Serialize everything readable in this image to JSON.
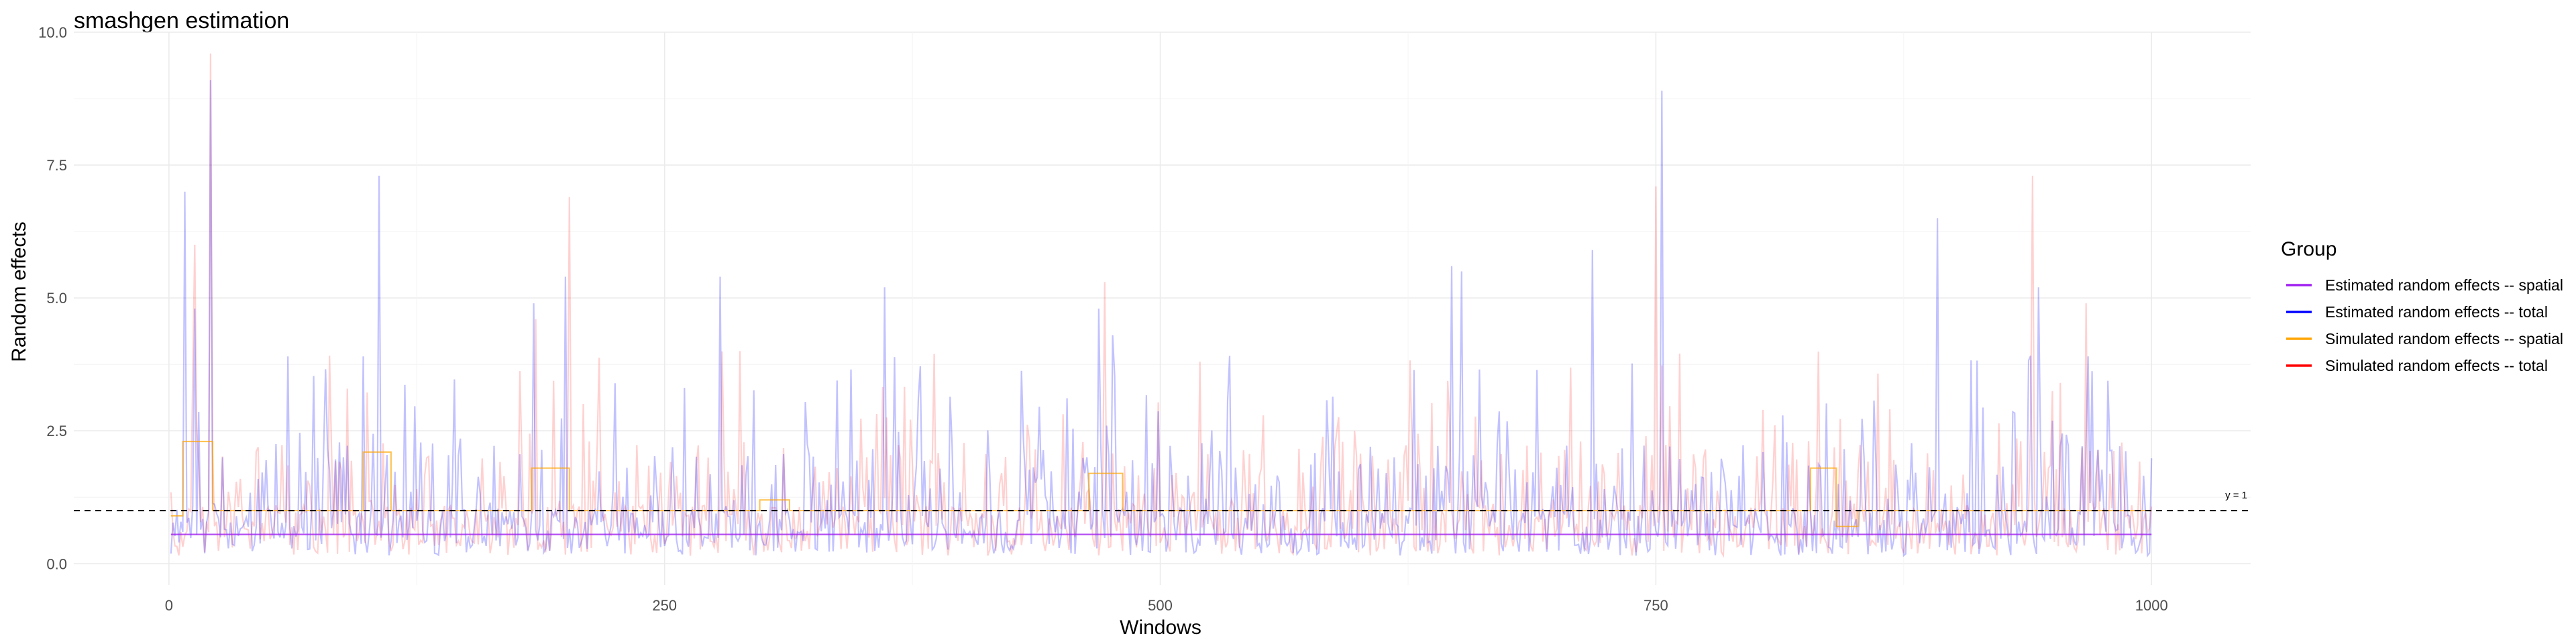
{
  "chart_data": {
    "type": "line",
    "title": "smashgen estimation",
    "xlabel": "Windows",
    "ylabel": "Random effects",
    "xlim": [
      -48,
      1050
    ],
    "ylim": [
      -0.4,
      10.0
    ],
    "x_ticks": [
      0,
      250,
      500,
      750,
      1000
    ],
    "x_tick_labels": [
      "0",
      "250",
      "500",
      "750",
      "1000"
    ],
    "y_ticks": [
      0,
      2.5,
      5,
      7.5,
      10
    ],
    "y_tick_labels": [
      "0.0",
      "2.5",
      "5.0",
      "7.5",
      "10.0"
    ],
    "grid": true,
    "legend_position": "right",
    "legend_title": "Group",
    "reference_line": {
      "y": 1,
      "label": "y = 1",
      "style": "dashed"
    },
    "series": [
      {
        "name": "Estimated random effects -- spatial",
        "color": "#a020f0",
        "kind": "flat-line",
        "x": [
          1,
          1000
        ],
        "values": [
          0.55,
          0.55
        ]
      },
      {
        "name": "Estimated random effects -- total",
        "color": "#0000ff",
        "kind": "noisy-spikes",
        "x_range": [
          1,
          1000
        ],
        "baseline": 0.65,
        "peaks": [
          {
            "x": 8,
            "y": 7.0
          },
          {
            "x": 13,
            "y": 4.8
          },
          {
            "x": 21,
            "y": 9.1
          },
          {
            "x": 60,
            "y": 3.9
          },
          {
            "x": 98,
            "y": 3.9
          },
          {
            "x": 106,
            "y": 7.3
          },
          {
            "x": 184,
            "y": 4.9
          },
          {
            "x": 200,
            "y": 5.4
          },
          {
            "x": 278,
            "y": 5.4
          },
          {
            "x": 361,
            "y": 5.2
          },
          {
            "x": 469,
            "y": 4.8
          },
          {
            "x": 476,
            "y": 4.3
          },
          {
            "x": 647,
            "y": 5.6
          },
          {
            "x": 652,
            "y": 5.5
          },
          {
            "x": 718,
            "y": 5.9
          },
          {
            "x": 753,
            "y": 8.9
          },
          {
            "x": 892,
            "y": 6.5
          },
          {
            "x": 943,
            "y": 5.2
          },
          {
            "x": 968,
            "y": 3.9
          }
        ]
      },
      {
        "name": "Simulated random effects -- spatial",
        "color": "#ffa500",
        "kind": "step",
        "segments": [
          {
            "x0": 1,
            "x1": 7,
            "y": 0.9
          },
          {
            "x0": 7,
            "y": 2.3,
            "x1": 22
          },
          {
            "x0": 22,
            "x1": 98,
            "y": 1.0
          },
          {
            "x0": 98,
            "x1": 112,
            "y": 2.1
          },
          {
            "x0": 112,
            "x1": 183,
            "y": 1.0
          },
          {
            "x0": 183,
            "x1": 202,
            "y": 1.8
          },
          {
            "x0": 202,
            "x1": 298,
            "y": 1.0
          },
          {
            "x0": 298,
            "x1": 313,
            "y": 1.2
          },
          {
            "x0": 313,
            "x1": 464,
            "y": 1.0
          },
          {
            "x0": 464,
            "x1": 481,
            "y": 1.7
          },
          {
            "x0": 481,
            "x1": 828,
            "y": 1.0
          },
          {
            "x0": 828,
            "x1": 841,
            "y": 1.8
          },
          {
            "x0": 841,
            "x1": 852,
            "y": 0.7
          },
          {
            "x0": 852,
            "x1": 1000,
            "y": 1.0
          }
        ]
      },
      {
        "name": "Simulated random effects -- total",
        "color": "#ff0000",
        "kind": "noisy-spikes",
        "x_range": [
          1,
          1000
        ],
        "baseline": 0.7,
        "peaks": [
          {
            "x": 13,
            "y": 6.0
          },
          {
            "x": 21,
            "y": 9.6
          },
          {
            "x": 185,
            "y": 4.6
          },
          {
            "x": 202,
            "y": 6.9
          },
          {
            "x": 472,
            "y": 5.3
          },
          {
            "x": 750,
            "y": 7.1
          },
          {
            "x": 940,
            "y": 7.3
          },
          {
            "x": 967,
            "y": 4.9
          }
        ]
      }
    ]
  }
}
